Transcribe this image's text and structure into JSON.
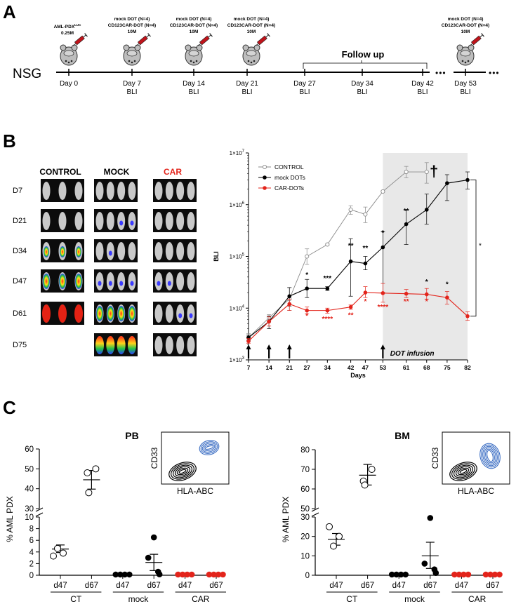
{
  "panels": {
    "a": "A",
    "b": "B",
    "c": "C"
  },
  "timeline": {
    "strain": "NSG",
    "follow_up": "Follow up",
    "ellipsis": "•••",
    "days": [
      {
        "day": "Day 0",
        "bli": ""
      },
      {
        "day": "Day 7",
        "bli": "BLI"
      },
      {
        "day": "Day 14",
        "bli": "BLI"
      },
      {
        "day": "Day 21",
        "bli": "BLI"
      },
      {
        "day": "Day 27",
        "bli": "BLI"
      },
      {
        "day": "Day 34",
        "bli": "BLI"
      },
      {
        "day": "Day 42",
        "bli": "BLI"
      },
      {
        "day": "Day 53",
        "bli": "BLI"
      }
    ],
    "injections": [
      {
        "line1": "AML-PDX",
        "line1_sup": "LUC",
        "line2": "0.25M",
        "line3": ""
      },
      {
        "line1": "mock DOT (N=4)",
        "line1_sup": "",
        "line2": "CD123CAR-DOT (N=4)",
        "line3": "10M"
      },
      {
        "line1": "mock DOT (N=4)",
        "line1_sup": "",
        "line2": "CD123CAR-DOT (N=4)",
        "line3": "10M"
      },
      {
        "line1": "mock DOT (N=4)",
        "line1_sup": "",
        "line2": "CD123CAR-DOT (N=4)",
        "line3": "10M"
      },
      {
        "line1": "mock DOT (N=4)",
        "line1_sup": "",
        "line2": "CD123CAR-DOT (N=4)",
        "line3": "10M"
      }
    ]
  },
  "imaging": {
    "columns": [
      "CONTROL",
      "MOCK",
      "CAR"
    ],
    "rows": [
      "D7",
      "D21",
      "D34",
      "D47",
      "D61",
      "D75"
    ]
  },
  "chart_data": [
    {
      "type": "line",
      "title": "",
      "xlabel": "Days",
      "ylabel": "BLI",
      "yscale": "log",
      "ylim": [
        1000,
        10000000
      ],
      "y_ticks": [
        {
          "base": "1×10",
          "exp": "3"
        },
        {
          "base": "1×10",
          "exp": "4"
        },
        {
          "base": "1×10",
          "exp": "5"
        },
        {
          "base": "1×10",
          "exp": "6"
        },
        {
          "base": "1×10",
          "exp": "7"
        }
      ],
      "x_ticks": [
        "7",
        "14",
        "21",
        "27",
        "34",
        "42",
        "47",
        "53",
        "61",
        "68",
        "75",
        "82"
      ],
      "legend": [
        "CONTROL",
        "mock DOTs",
        "CAR-DOTs"
      ],
      "series": [
        {
          "name": "CONTROL",
          "x": [
            7,
            14,
            21,
            27,
            34,
            42,
            47,
            53,
            61,
            68
          ],
          "values": [
            2700,
            6500,
            15000,
            100000,
            170000,
            800000,
            650000,
            1800000,
            4300000,
            4300000
          ],
          "err_hi": [
            3200,
            7500,
            25000,
            140000,
            175000,
            950000,
            900000,
            1850000,
            5500000,
            6500000
          ],
          "err_lo": [
            2300,
            5500,
            9000,
            70000,
            165000,
            650000,
            450000,
            1750000,
            3300000,
            2600000
          ]
        },
        {
          "name": "mock DOTs",
          "x": [
            7,
            14,
            21,
            27,
            34,
            42,
            47,
            53,
            61,
            68,
            75,
            82
          ],
          "values": [
            2700,
            5500,
            17000,
            24000,
            24000,
            80000,
            73000,
            150000,
            420000,
            800000,
            2600000,
            3000000
          ],
          "err_hi": [
            3000,
            7000,
            25000,
            36000,
            26000,
            220000,
            100000,
            300000,
            800000,
            1600000,
            3800000,
            4300000
          ],
          "err_lo": [
            2400,
            4000,
            11000,
            16000,
            22000,
            17000,
            55000,
            20000,
            170000,
            420000,
            1200000,
            2000000
          ]
        },
        {
          "name": "CAR-DOTs",
          "x": [
            7,
            14,
            21,
            27,
            34,
            42,
            47,
            53,
            61,
            68,
            75,
            82
          ],
          "values": [
            2300,
            5500,
            12000,
            9000,
            9000,
            10500,
            20000,
            19500,
            19000,
            18500,
            16000,
            7000
          ],
          "err_hi": [
            2600,
            6800,
            15000,
            10500,
            10000,
            11500,
            26000,
            30000,
            23000,
            24000,
            21000,
            8500
          ],
          "err_lo": [
            2100,
            4500,
            9000,
            7800,
            8000,
            9500,
            16000,
            13000,
            16000,
            15000,
            12000,
            5800
          ]
        }
      ],
      "annotations": [
        {
          "text": "*",
          "x": 27,
          "y": 40000,
          "color": "#000000"
        },
        {
          "text": "***",
          "x": 34,
          "y": 34000,
          "color": "#000000"
        },
        {
          "text": "**",
          "x": 42,
          "y": 145000,
          "color": "#000000"
        },
        {
          "text": "**",
          "x": 47,
          "y": 130000,
          "color": "#000000"
        },
        {
          "text": "*",
          "x": 53,
          "y": 260000,
          "color": "#000000"
        },
        {
          "text": "**",
          "x": 61,
          "y": 680000,
          "color": "#000000"
        },
        {
          "text": "*",
          "x": 68,
          "y": 29000,
          "color": "#000000"
        },
        {
          "text": "*",
          "x": 75,
          "y": 26000,
          "color": "#000000"
        },
        {
          "text": "*",
          "x": 27,
          "y": 6400,
          "color": "#e3241b"
        },
        {
          "text": "****",
          "x": 34,
          "y": 5600,
          "color": "#e3241b"
        },
        {
          "text": "**",
          "x": 42,
          "y": 6600,
          "color": "#e3241b"
        },
        {
          "text": "*",
          "x": 47,
          "y": 12200,
          "color": "#e3241b"
        },
        {
          "text": "****",
          "x": 53,
          "y": 9400,
          "color": "#e3241b"
        },
        {
          "text": "**",
          "x": 61,
          "y": 12200,
          "color": "#e3241b"
        },
        {
          "text": "*",
          "x": 68,
          "y": 12200,
          "color": "#e3241b"
        }
      ],
      "bracket_label": "*",
      "dagger": "†",
      "infusion_days": [
        7,
        14,
        21,
        53
      ],
      "shaded_range": [
        53,
        82
      ],
      "infusion_label": "DOT infusion",
      "colors": {
        "CONTROL": "#8a8a8a",
        "mock DOTs": "#000000",
        "CAR-DOTs": "#e3241b"
      }
    },
    {
      "type": "scatter",
      "title": "PB",
      "ylabel": "% AML PDX",
      "inset": {
        "ylabel": "CD33",
        "xlabel": "HLA-ABC"
      },
      "y_ticks_lower": [
        "0",
        "2",
        "4",
        "6",
        "8",
        "10"
      ],
      "y_ticks_upper": [
        "30",
        "40",
        "50",
        "60"
      ],
      "x_ticks": [
        "d47",
        "d67",
        "d47",
        "d67",
        "d47",
        "d67"
      ],
      "groups": [
        "CT",
        "mock",
        "CAR"
      ],
      "series": [
        {
          "name": "CT d47",
          "color": "open",
          "values": [
            3.3,
            4.6,
            3.8
          ],
          "mean": 4.5,
          "sem_lo": 3.9,
          "sem_hi": 5.2
        },
        {
          "name": "CT d67",
          "color": "open",
          "values": [
            50,
            48,
            38
          ],
          "mean": 44.5,
          "sem_lo": 39.8,
          "sem_hi": 49.2
        },
        {
          "name": "mock d47",
          "color": "#000000",
          "values": [
            0.05,
            0.05,
            0.05,
            0.05
          ],
          "mean": 0.05,
          "sem_lo": 0.05,
          "sem_hi": 0.05
        },
        {
          "name": "mock d67",
          "color": "#000000",
          "values": [
            6.5,
            3.0,
            0.6,
            0.15
          ],
          "mean": 2.2,
          "sem_lo": 0.8,
          "sem_hi": 3.6
        },
        {
          "name": "CAR d47",
          "color": "#e3241b",
          "values": [
            0,
            0,
            0,
            0
          ],
          "mean": 0,
          "sem_lo": 0,
          "sem_hi": 0
        },
        {
          "name": "CAR d67",
          "color": "#e3241b",
          "values": [
            0,
            0,
            0,
            0
          ],
          "mean": 0,
          "sem_lo": 0,
          "sem_hi": 0
        }
      ]
    },
    {
      "type": "scatter",
      "title": "BM",
      "ylabel": "% AML PDX",
      "inset": {
        "ylabel": "CD33",
        "xlabel": "HLA-ABC"
      },
      "y_ticks_lower": [
        "0",
        "10",
        "20",
        "30"
      ],
      "y_ticks_upper": [
        "50",
        "60",
        "70",
        "80"
      ],
      "x_ticks": [
        "d47",
        "d67",
        "d47",
        "d67",
        "d47",
        "d67"
      ],
      "groups": [
        "CT",
        "mock",
        "CAR"
      ],
      "series": [
        {
          "name": "CT d47",
          "color": "open",
          "values": [
            25,
            15,
            20
          ],
          "mean": 18.5,
          "sem_lo": 15.5,
          "sem_hi": 21.5
        },
        {
          "name": "CT d67",
          "color": "open",
          "values": [
            70,
            64,
            62
          ],
          "mean": 67,
          "sem_lo": 62,
          "sem_hi": 72.5
        },
        {
          "name": "mock d47",
          "color": "#000000",
          "values": [
            0.3,
            0.3,
            0.3,
            0.3
          ],
          "mean": 0.3,
          "sem_lo": 0.3,
          "sem_hi": 0.3
        },
        {
          "name": "mock d67",
          "color": "#000000",
          "values": [
            29.5,
            6,
            3,
            1.2
          ],
          "mean": 10,
          "sem_lo": 3.5,
          "sem_hi": 17
        },
        {
          "name": "CAR d47",
          "color": "#e3241b",
          "values": [
            0,
            0,
            0,
            0
          ],
          "mean": 0,
          "sem_lo": 0,
          "sem_hi": 0
        },
        {
          "name": "CAR d67",
          "color": "#e3241b",
          "values": [
            0,
            0,
            0,
            0
          ],
          "mean": 0,
          "sem_lo": 0,
          "sem_hi": 0
        }
      ]
    }
  ]
}
